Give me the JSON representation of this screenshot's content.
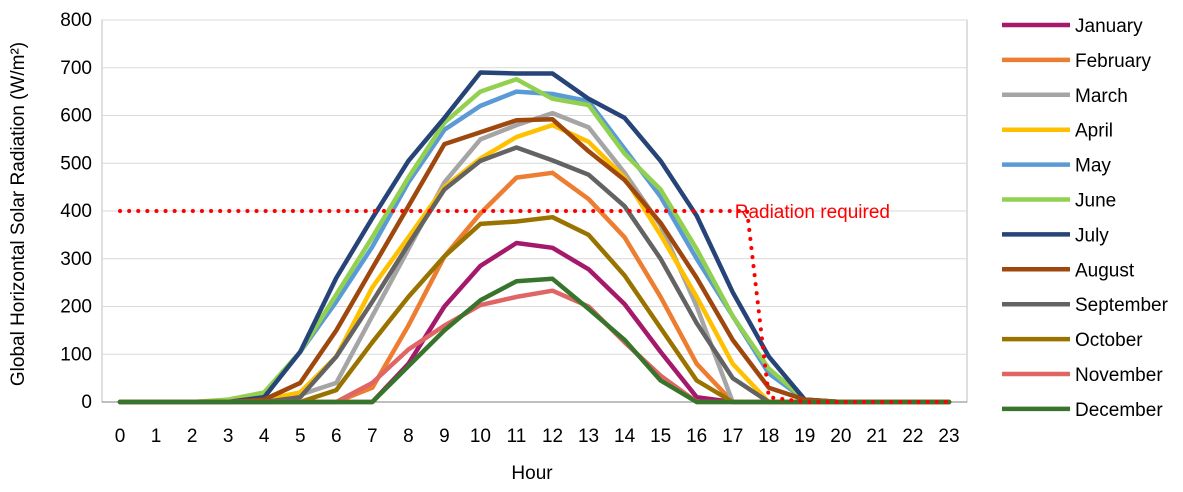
{
  "chart_data": {
    "type": "line",
    "xlabel": "Hour",
    "ylabel": "Global Horizontal Solar Radiation (W/m²)",
    "ylim": [
      0,
      800
    ],
    "yticks": [
      0,
      100,
      200,
      300,
      400,
      500,
      600,
      700,
      800
    ],
    "grid": "horizontal",
    "legend_position": "right",
    "x": [
      0,
      1,
      2,
      3,
      4,
      5,
      6,
      7,
      8,
      9,
      10,
      11,
      12,
      13,
      14,
      15,
      16,
      17,
      18,
      19,
      20,
      21,
      22,
      23
    ],
    "series": [
      {
        "name": "January",
        "color": "#A5196B",
        "values": [
          0,
          0,
          0,
          0,
          0,
          0,
          0,
          0,
          80,
          200,
          285,
          333,
          323,
          278,
          205,
          105,
          10,
          0,
          0,
          0,
          0,
          0,
          0,
          0
        ]
      },
      {
        "name": "February",
        "color": "#ED7D31",
        "values": [
          0,
          0,
          0,
          0,
          0,
          0,
          0,
          30,
          160,
          305,
          395,
          470,
          480,
          425,
          345,
          220,
          80,
          0,
          0,
          0,
          0,
          0,
          0,
          0
        ]
      },
      {
        "name": "March",
        "color": "#A5A5A5",
        "values": [
          0,
          0,
          0,
          0,
          5,
          15,
          40,
          180,
          320,
          460,
          550,
          580,
          605,
          575,
          480,
          370,
          200,
          0,
          0,
          0,
          0,
          0,
          0,
          0
        ]
      },
      {
        "name": "April",
        "color": "#FFC000",
        "values": [
          0,
          0,
          0,
          0,
          5,
          20,
          95,
          240,
          345,
          450,
          510,
          555,
          580,
          545,
          470,
          350,
          220,
          80,
          0,
          0,
          0,
          0,
          0,
          0
        ]
      },
      {
        "name": "May",
        "color": "#5B9BD5",
        "values": [
          0,
          0,
          0,
          0,
          15,
          105,
          210,
          325,
          460,
          570,
          620,
          650,
          645,
          630,
          530,
          430,
          300,
          180,
          60,
          5,
          0,
          0,
          0,
          0
        ]
      },
      {
        "name": "June",
        "color": "#92D050",
        "values": [
          0,
          0,
          0,
          5,
          20,
          105,
          225,
          345,
          470,
          585,
          650,
          676,
          635,
          622,
          520,
          445,
          320,
          180,
          70,
          5,
          0,
          0,
          0,
          0
        ]
      },
      {
        "name": "July",
        "color": "#264478",
        "values": [
          0,
          0,
          0,
          0,
          10,
          105,
          260,
          385,
          505,
          595,
          690,
          688,
          688,
          635,
          595,
          505,
          390,
          230,
          95,
          5,
          0,
          0,
          0,
          0
        ]
      },
      {
        "name": "August",
        "color": "#9E480E",
        "values": [
          0,
          0,
          0,
          0,
          5,
          40,
          150,
          280,
          410,
          540,
          565,
          590,
          592,
          525,
          465,
          375,
          260,
          130,
          30,
          5,
          0,
          0,
          0,
          0
        ]
      },
      {
        "name": "September",
        "color": "#636363",
        "values": [
          0,
          0,
          0,
          0,
          0,
          10,
          95,
          210,
          330,
          445,
          505,
          533,
          506,
          476,
          410,
          300,
          165,
          50,
          0,
          0,
          0,
          0,
          0,
          0
        ]
      },
      {
        "name": "October",
        "color": "#997300",
        "values": [
          0,
          0,
          0,
          0,
          0,
          0,
          25,
          125,
          220,
          305,
          373,
          378,
          387,
          350,
          265,
          155,
          45,
          0,
          0,
          0,
          0,
          0,
          0,
          0
        ]
      },
      {
        "name": "November",
        "color": "#E06666",
        "values": [
          0,
          0,
          0,
          0,
          0,
          0,
          0,
          40,
          110,
          160,
          203,
          220,
          233,
          200,
          125,
          55,
          0,
          0,
          0,
          0,
          0,
          0,
          0,
          0
        ]
      },
      {
        "name": "December",
        "color": "#38752C",
        "values": [
          0,
          0,
          0,
          0,
          0,
          0,
          0,
          0,
          75,
          150,
          213,
          253,
          258,
          195,
          130,
          45,
          0,
          0,
          0,
          0,
          0,
          0,
          0,
          0
        ]
      }
    ],
    "annotations": [
      {
        "text": "Radiation required",
        "color": "#FF0000",
        "style": "dotted",
        "points": [
          [
            0,
            400
          ],
          [
            1,
            400
          ],
          [
            2,
            400
          ],
          [
            3,
            400
          ],
          [
            4,
            400
          ],
          [
            5,
            400
          ],
          [
            6,
            400
          ],
          [
            7,
            400
          ],
          [
            8,
            400
          ],
          [
            9,
            400
          ],
          [
            10,
            400
          ],
          [
            11,
            400
          ],
          [
            12,
            400
          ],
          [
            13,
            400
          ],
          [
            14,
            400
          ],
          [
            15,
            400
          ],
          [
            16,
            400
          ],
          [
            17,
            400
          ],
          [
            17.4,
            400
          ],
          [
            18,
            10
          ],
          [
            19,
            0
          ],
          [
            20,
            0
          ],
          [
            21,
            0
          ],
          [
            22,
            0
          ],
          [
            23,
            0
          ]
        ]
      }
    ]
  }
}
